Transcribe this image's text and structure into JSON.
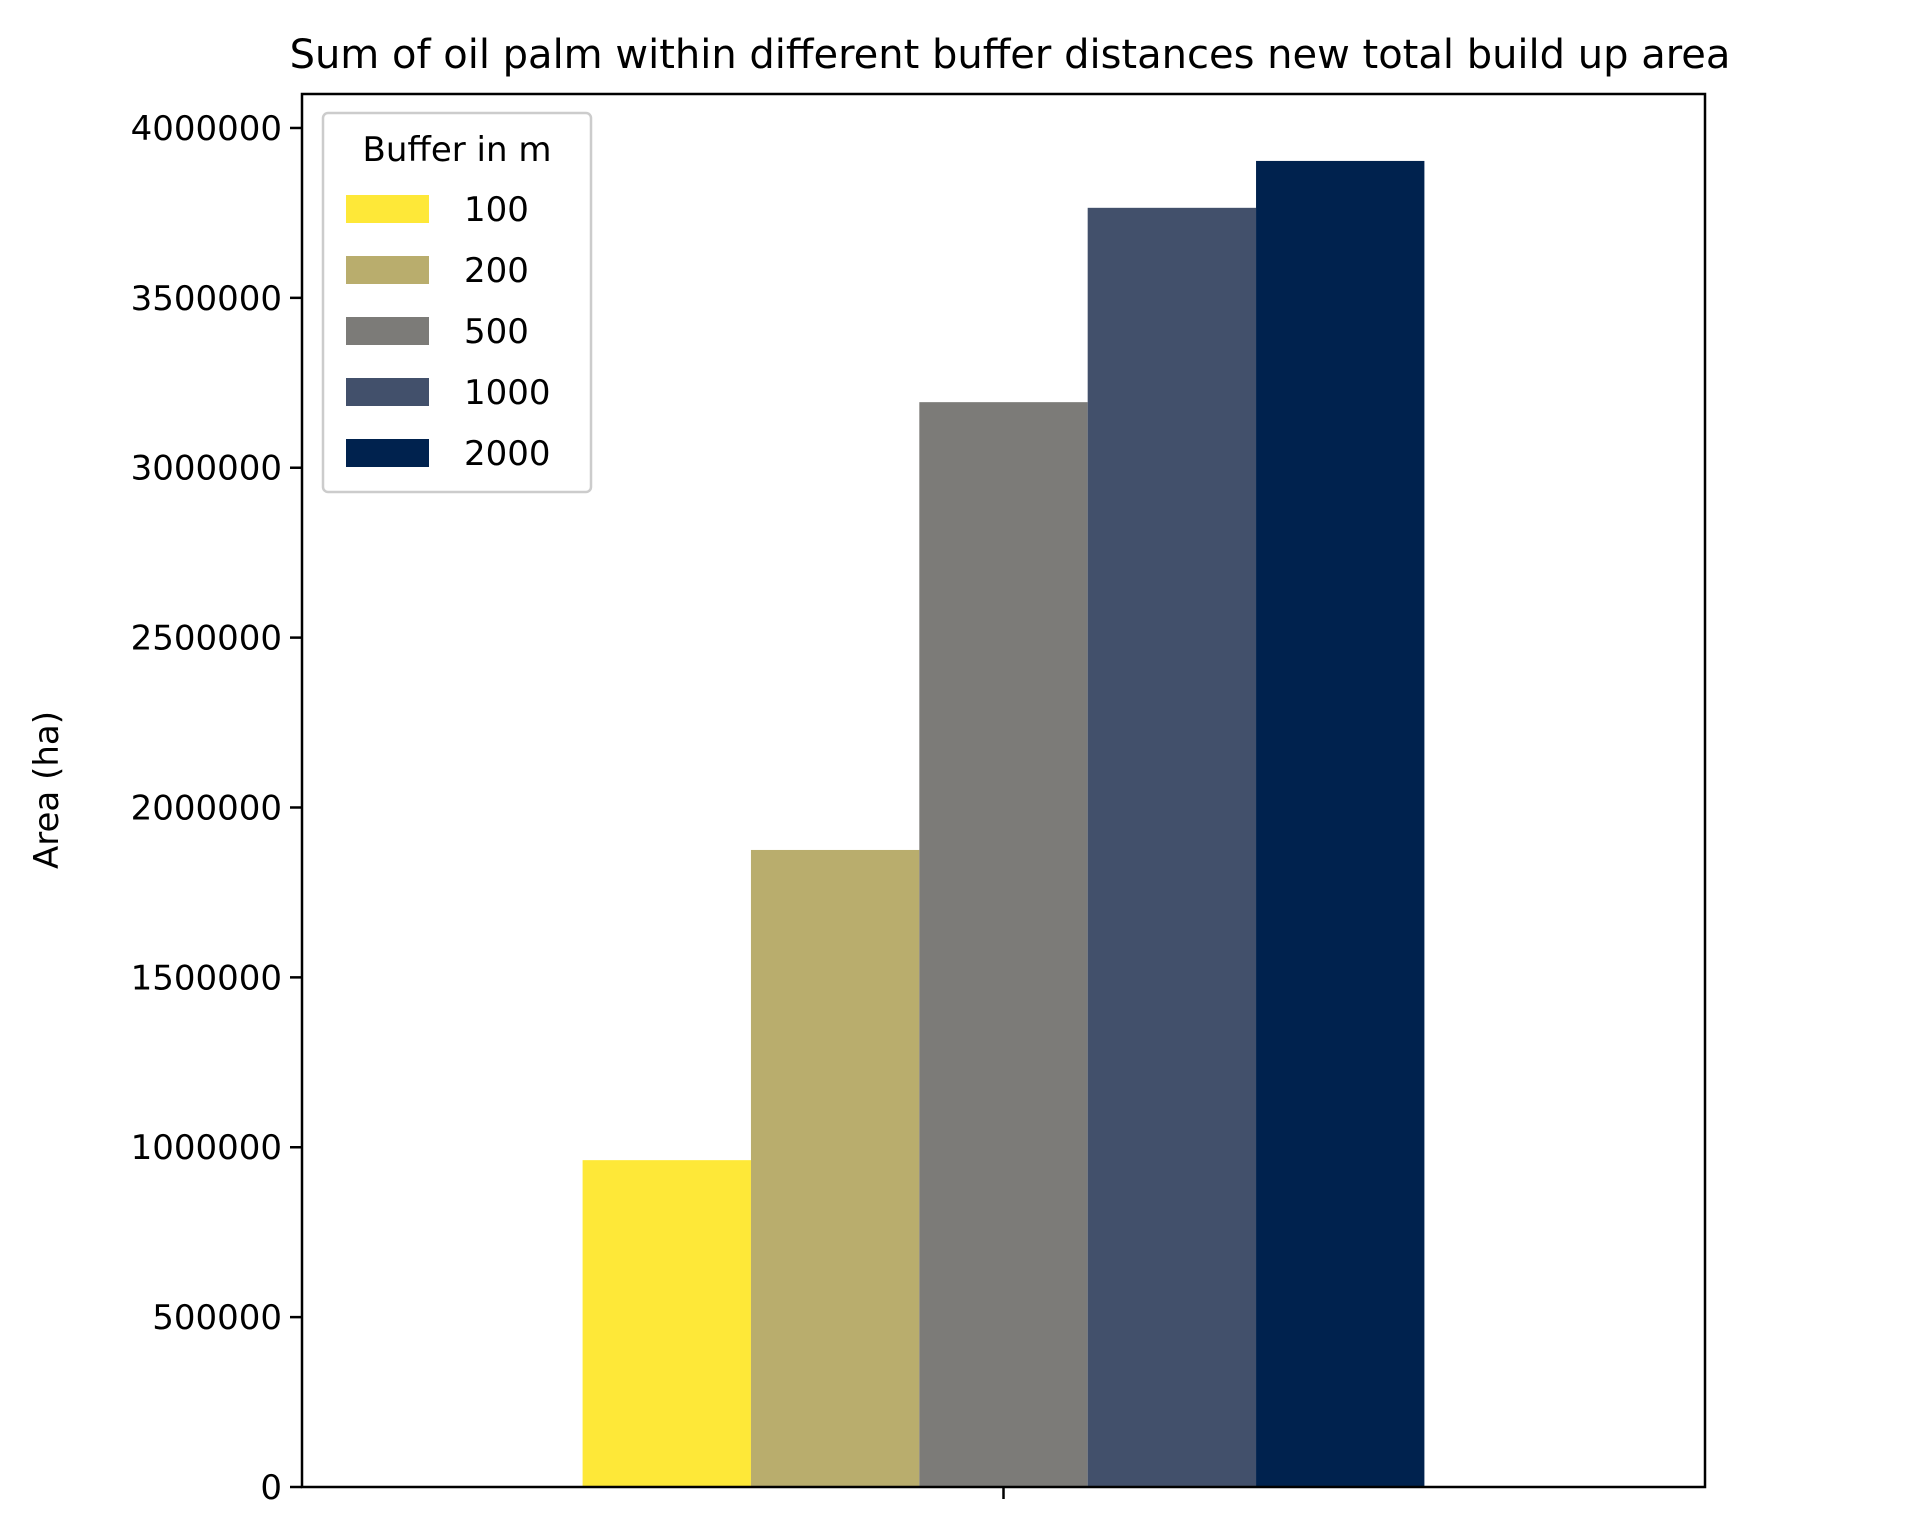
{
  "chart_data": {
    "type": "bar",
    "title": "Sum of oil palm within different buffer distances new total build up area",
    "xlabel": "",
    "ylabel": "Area (ha)",
    "ylim": [
      0,
      4100000
    ],
    "yticks": [
      0,
      500000,
      1000000,
      1500000,
      2000000,
      2500000,
      3000000,
      3500000,
      4000000
    ],
    "ytick_labels": [
      "0",
      "500000",
      "1000000",
      "1500000",
      "2000000",
      "2500000",
      "3000000",
      "3500000",
      "4000000"
    ],
    "categories": [
      ""
    ],
    "legend": {
      "title": "Buffer in m",
      "placement": "upper-left"
    },
    "grid": false,
    "series": [
      {
        "name": "100",
        "color": "#fee838",
        "values": [
          962000
        ]
      },
      {
        "name": "200",
        "color": "#b9ad6d",
        "values": [
          1875000
        ]
      },
      {
        "name": "500",
        "color": "#7c7b78",
        "values": [
          3193000
        ]
      },
      {
        "name": "1000",
        "color": "#42506b",
        "values": [
          3765000
        ]
      },
      {
        "name": "2000",
        "color": "#00224e",
        "values": [
          3903000
        ]
      }
    ]
  }
}
